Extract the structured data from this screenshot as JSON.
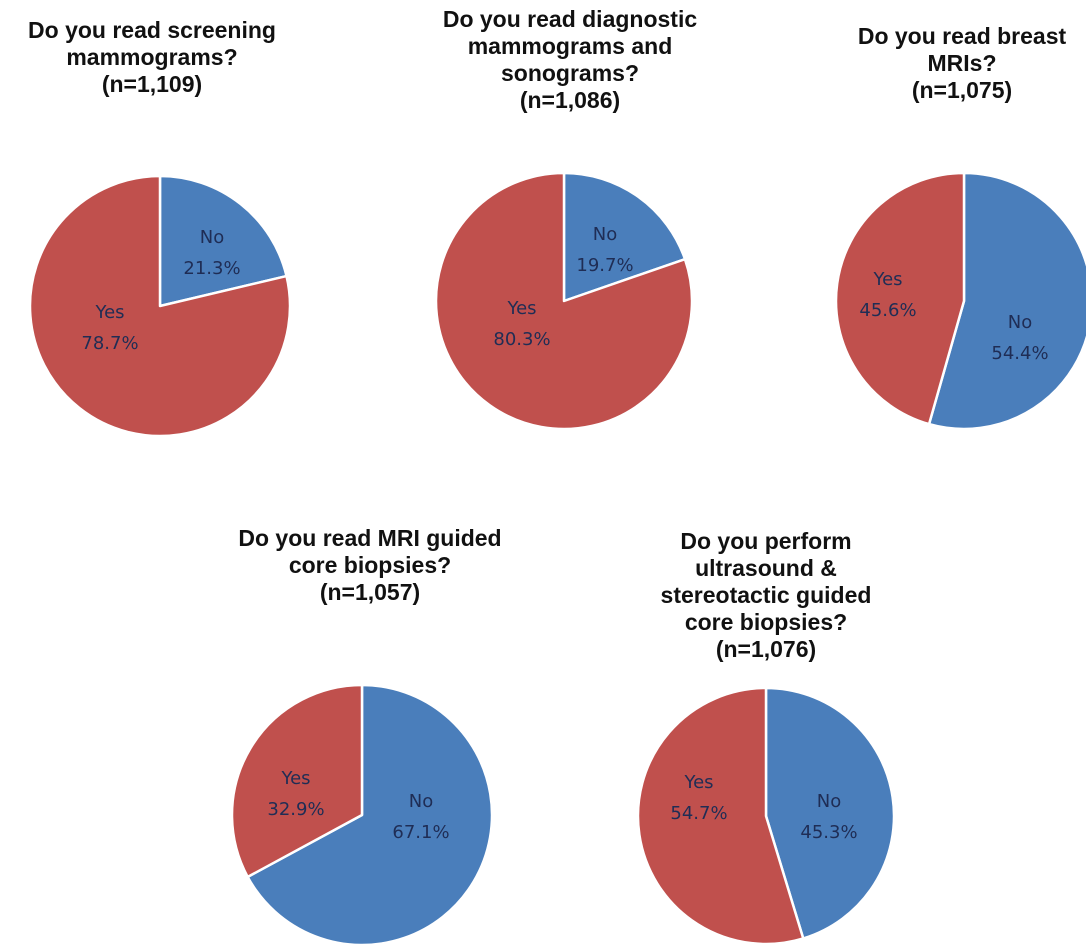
{
  "chart_data": [
    {
      "type": "pie",
      "title": [
        "Do you read screening",
        "mammograms?",
        "(n=1,109)"
      ],
      "slices": [
        {
          "name": "No",
          "value": 21.3,
          "label": "21.3%",
          "color": "#4a7ebb"
        },
        {
          "name": "Yes",
          "value": 78.7,
          "label": "78.7%",
          "color": "#c0504d"
        }
      ]
    },
    {
      "type": "pie",
      "title": [
        "Do you read diagnostic",
        "mammograms and",
        "sonograms?",
        "(n=1,086)"
      ],
      "slices": [
        {
          "name": "No",
          "value": 19.7,
          "label": "19.7%",
          "color": "#4a7ebb"
        },
        {
          "name": "Yes",
          "value": 80.3,
          "label": "80.3%",
          "color": "#c0504d"
        }
      ]
    },
    {
      "type": "pie",
      "title": [
        "Do you read breast",
        "MRIs?",
        "(n=1,075)"
      ],
      "slices": [
        {
          "name": "No",
          "value": 54.4,
          "label": "54.4%",
          "color": "#4a7ebb"
        },
        {
          "name": "Yes",
          "value": 45.6,
          "label": "45.6%",
          "color": "#c0504d"
        }
      ]
    },
    {
      "type": "pie",
      "title": [
        "Do you read MRI guided",
        "core biopsies?",
        "(n=1,057)"
      ],
      "slices": [
        {
          "name": "No",
          "value": 67.1,
          "label": "67.1%",
          "color": "#4a7ebb"
        },
        {
          "name": "Yes",
          "value": 32.9,
          "label": "32.9%",
          "color": "#c0504d"
        }
      ]
    },
    {
      "type": "pie",
      "title": [
        "Do you perform",
        "ultrasound &",
        "stereotactic guided",
        "core biopsies?",
        "(n=1,076)"
      ],
      "slices": [
        {
          "name": "No",
          "value": 45.3,
          "label": "45.3%",
          "color": "#4a7ebb"
        },
        {
          "name": "Yes",
          "value": 54.7,
          "label": "54.7%",
          "color": "#c0504d"
        }
      ]
    }
  ]
}
